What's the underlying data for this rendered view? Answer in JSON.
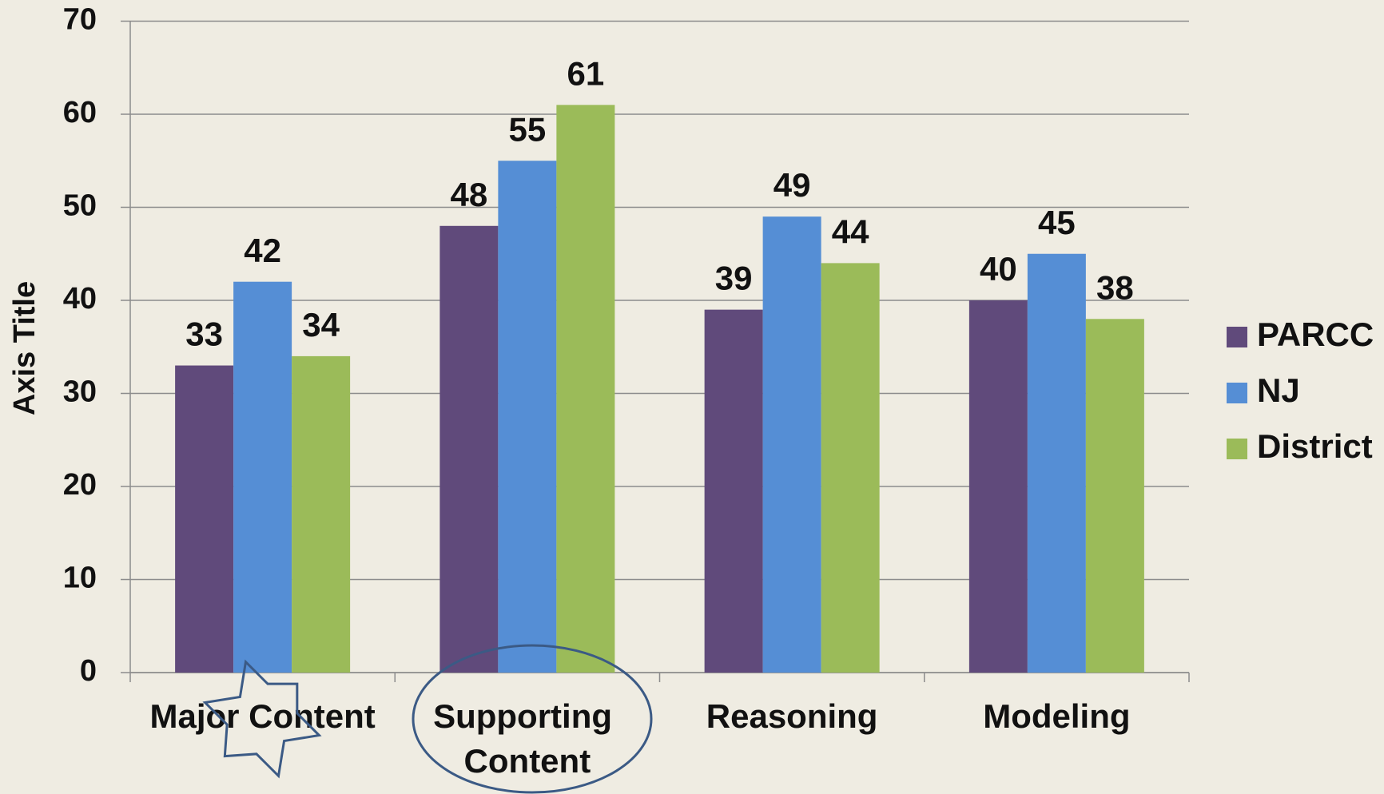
{
  "chart_data": {
    "type": "bar",
    "y_axis_label": "Axis Title",
    "categories": [
      "Major Content",
      "Supporting Content",
      "Reasoning",
      "Modeling"
    ],
    "series": [
      {
        "name": "PARCC",
        "color": "#604a7b",
        "values": [
          33,
          48,
          39,
          40
        ]
      },
      {
        "name": "NJ",
        "color": "#558ed5",
        "values": [
          42,
          55,
          49,
          45
        ]
      },
      {
        "name": "District",
        "color": "#9bbb59",
        "values": [
          34,
          61,
          44,
          38
        ]
      }
    ],
    "ylim": [
      0,
      70
    ],
    "yticks": [
      0,
      10,
      20,
      30,
      40,
      50,
      60,
      70
    ],
    "grid": true,
    "legend": "right"
  }
}
